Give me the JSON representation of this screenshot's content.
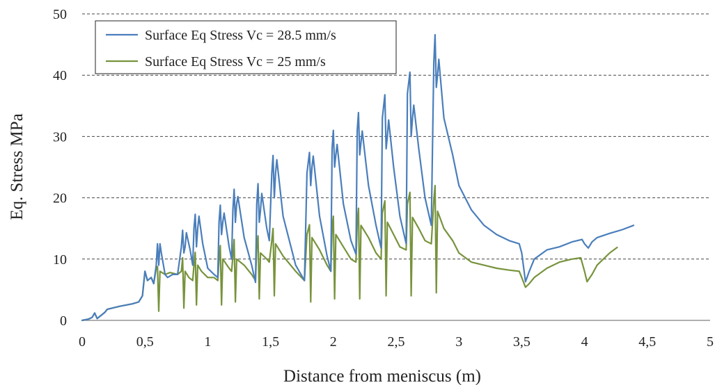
{
  "chart_data": {
    "type": "line",
    "xlabel": "Distance from meniscus (m)",
    "ylabel": "Eq. Stress MPa",
    "xlim": [
      0,
      5
    ],
    "ylim": [
      0,
      50
    ],
    "xticks": [
      0,
      0.5,
      1,
      1.5,
      2,
      2.5,
      3,
      3.5,
      4,
      4.5,
      5
    ],
    "xtick_labels": [
      "0",
      "0,5",
      "1",
      "1,5",
      "2",
      "2,5",
      "3",
      "3,5",
      "4",
      "4,5",
      "5"
    ],
    "yticks": [
      0,
      10,
      20,
      30,
      40,
      50
    ],
    "ytick_labels": [
      "0",
      "10",
      "20",
      "30",
      "40",
      "50"
    ],
    "grid": "horizontal dashed",
    "legend_position": "top-left",
    "series": [
      {
        "name": "Surface Eq Stress Vc = 28.5 mm/s",
        "color": "#4a7ebb",
        "points": [
          [
            0,
            0
          ],
          [
            0.05,
            0.2
          ],
          [
            0.08,
            0.5
          ],
          [
            0.1,
            1.2
          ],
          [
            0.12,
            0.3
          ],
          [
            0.18,
            1.3
          ],
          [
            0.2,
            1.8
          ],
          [
            0.3,
            2.3
          ],
          [
            0.4,
            2.7
          ],
          [
            0.45,
            3.0
          ],
          [
            0.48,
            4.0
          ],
          [
            0.5,
            8.0
          ],
          [
            0.52,
            6.5
          ],
          [
            0.55,
            7.0
          ],
          [
            0.57,
            6.0
          ],
          [
            0.59,
            9.0
          ],
          [
            0.6,
            12.5
          ],
          [
            0.61,
            9.0
          ],
          [
            0.62,
            12.5
          ],
          [
            0.63,
            11.0
          ],
          [
            0.66,
            7.5
          ],
          [
            0.68,
            7.0
          ],
          [
            0.72,
            7.5
          ],
          [
            0.76,
            7.5
          ],
          [
            0.79,
            12.0
          ],
          [
            0.8,
            14.7
          ],
          [
            0.81,
            11.0
          ],
          [
            0.82,
            12.0
          ],
          [
            0.83,
            14.3
          ],
          [
            0.86,
            11.5
          ],
          [
            0.88,
            9.0
          ],
          [
            0.89,
            15.0
          ],
          [
            0.9,
            17.3
          ],
          [
            0.91,
            12.0
          ],
          [
            0.92,
            15.0
          ],
          [
            0.93,
            17.0
          ],
          [
            0.96,
            12.5
          ],
          [
            1.0,
            8.5
          ],
          [
            1.05,
            7.5
          ],
          [
            1.08,
            7.0
          ],
          [
            1.09,
            16.0
          ],
          [
            1.1,
            18.8
          ],
          [
            1.11,
            14.0
          ],
          [
            1.12,
            16.0
          ],
          [
            1.13,
            17.5
          ],
          [
            1.17,
            12.0
          ],
          [
            1.19,
            10.0
          ],
          [
            1.2,
            18.0
          ],
          [
            1.21,
            21.4
          ],
          [
            1.22,
            16.0
          ],
          [
            1.23,
            19.0
          ],
          [
            1.24,
            20.2
          ],
          [
            1.29,
            13.5
          ],
          [
            1.35,
            9.0
          ],
          [
            1.38,
            6.2
          ],
          [
            1.39,
            19.0
          ],
          [
            1.4,
            22.3
          ],
          [
            1.41,
            16.0
          ],
          [
            1.42,
            18.0
          ],
          [
            1.43,
            20.7
          ],
          [
            1.47,
            15.0
          ],
          [
            1.49,
            13.0
          ],
          [
            1.51,
            24.0
          ],
          [
            1.52,
            26.9
          ],
          [
            1.53,
            20.0
          ],
          [
            1.54,
            24.0
          ],
          [
            1.55,
            26.2
          ],
          [
            1.6,
            17.0
          ],
          [
            1.7,
            9.0
          ],
          [
            1.77,
            6.5
          ],
          [
            1.79,
            24.0
          ],
          [
            1.81,
            27.4
          ],
          [
            1.82,
            22.0
          ],
          [
            1.83,
            25.0
          ],
          [
            1.84,
            26.8
          ],
          [
            1.89,
            17.0
          ],
          [
            1.95,
            10.5
          ],
          [
            1.98,
            8.0
          ],
          [
            1.99,
            28.0
          ],
          [
            2.0,
            31.0
          ],
          [
            2.01,
            25.0
          ],
          [
            2.02,
            27.0
          ],
          [
            2.03,
            28.7
          ],
          [
            2.08,
            19.0
          ],
          [
            2.14,
            13.0
          ],
          [
            2.18,
            10.8
          ],
          [
            2.19,
            31.0
          ],
          [
            2.2,
            33.9
          ],
          [
            2.21,
            27.0
          ],
          [
            2.22,
            29.0
          ],
          [
            2.23,
            30.9
          ],
          [
            2.28,
            22.0
          ],
          [
            2.34,
            15.5
          ],
          [
            2.38,
            11.8
          ],
          [
            2.39,
            33.0
          ],
          [
            2.41,
            36.8
          ],
          [
            2.42,
            28.0
          ],
          [
            2.43,
            30.0
          ],
          [
            2.44,
            32.7
          ],
          [
            2.48,
            25.0
          ],
          [
            2.53,
            17.0
          ],
          [
            2.58,
            12.5
          ],
          [
            2.59,
            37.0
          ],
          [
            2.61,
            40.5
          ],
          [
            2.62,
            30.0
          ],
          [
            2.63,
            33.0
          ],
          [
            2.64,
            35.1
          ],
          [
            2.68,
            28.0
          ],
          [
            2.73,
            20.0
          ],
          [
            2.78,
            15.5
          ],
          [
            2.8,
            42.0
          ],
          [
            2.81,
            46.6
          ],
          [
            2.82,
            38.0
          ],
          [
            2.83,
            40.0
          ],
          [
            2.84,
            42.6
          ],
          [
            2.88,
            33.0
          ],
          [
            2.95,
            27.0
          ],
          [
            3.0,
            22.0
          ],
          [
            3.1,
            18.0
          ],
          [
            3.2,
            15.5
          ],
          [
            3.3,
            14.0
          ],
          [
            3.4,
            13.0
          ],
          [
            3.48,
            12.5
          ],
          [
            3.5,
            11.0
          ],
          [
            3.53,
            6.3
          ],
          [
            3.56,
            8.0
          ],
          [
            3.6,
            10.0
          ],
          [
            3.7,
            11.5
          ],
          [
            3.8,
            12.0
          ],
          [
            3.9,
            12.8
          ],
          [
            3.98,
            13.2
          ],
          [
            4.0,
            12.5
          ],
          [
            4.03,
            11.8
          ],
          [
            4.06,
            12.8
          ],
          [
            4.1,
            13.5
          ],
          [
            4.2,
            14.2
          ],
          [
            4.3,
            14.8
          ],
          [
            4.39,
            15.5
          ]
        ]
      },
      {
        "name": "Surface Eq Stress Vc = 25 mm/s",
        "color": "#77933c",
        "points": [
          [
            0,
            0
          ],
          [
            0.05,
            0.2
          ],
          [
            0.08,
            0.5
          ],
          [
            0.1,
            1.2
          ],
          [
            0.12,
            0.3
          ],
          [
            0.18,
            1.3
          ],
          [
            0.2,
            1.8
          ],
          [
            0.3,
            2.3
          ],
          [
            0.4,
            2.7
          ],
          [
            0.45,
            3.0
          ],
          [
            0.48,
            4.0
          ],
          [
            0.5,
            8.0
          ],
          [
            0.52,
            6.5
          ],
          [
            0.55,
            7.0
          ],
          [
            0.57,
            6.0
          ],
          [
            0.59,
            8.5
          ],
          [
            0.6,
            8.8
          ],
          [
            0.61,
            1.5
          ],
          [
            0.62,
            8.0
          ],
          [
            0.66,
            7.5
          ],
          [
            0.7,
            7.8
          ],
          [
            0.76,
            7.5
          ],
          [
            0.79,
            8.0
          ],
          [
            0.8,
            10.2
          ],
          [
            0.81,
            2.0
          ],
          [
            0.82,
            8.0
          ],
          [
            0.85,
            7.0
          ],
          [
            0.88,
            6.5
          ],
          [
            0.89,
            9.0
          ],
          [
            0.9,
            11.1
          ],
          [
            0.91,
            2.5
          ],
          [
            0.92,
            9.0
          ],
          [
            0.95,
            8.0
          ],
          [
            1.0,
            7.0
          ],
          [
            1.05,
            7.0
          ],
          [
            1.08,
            6.5
          ],
          [
            1.09,
            10.0
          ],
          [
            1.1,
            12.2
          ],
          [
            1.11,
            2.5
          ],
          [
            1.12,
            10.0
          ],
          [
            1.17,
            8.5
          ],
          [
            1.19,
            8.0
          ],
          [
            1.2,
            10.5
          ],
          [
            1.21,
            13.2
          ],
          [
            1.22,
            3.0
          ],
          [
            1.23,
            10.0
          ],
          [
            1.29,
            9.0
          ],
          [
            1.35,
            7.5
          ],
          [
            1.38,
            6.5
          ],
          [
            1.39,
            12.0
          ],
          [
            1.4,
            13.8
          ],
          [
            1.41,
            3.5
          ],
          [
            1.42,
            11.0
          ],
          [
            1.47,
            10.0
          ],
          [
            1.49,
            9.5
          ],
          [
            1.51,
            13.0
          ],
          [
            1.52,
            15.0
          ],
          [
            1.53,
            4.0
          ],
          [
            1.54,
            12.5
          ],
          [
            1.6,
            10.5
          ],
          [
            1.7,
            8.0
          ],
          [
            1.77,
            6.5
          ],
          [
            1.79,
            14.0
          ],
          [
            1.81,
            15.6
          ],
          [
            1.82,
            3.0
          ],
          [
            1.83,
            13.5
          ],
          [
            1.89,
            11.5
          ],
          [
            1.95,
            9.0
          ],
          [
            1.98,
            8.0
          ],
          [
            1.99,
            15.0
          ],
          [
            2.0,
            17.0
          ],
          [
            2.01,
            3.5
          ],
          [
            2.02,
            14.0
          ],
          [
            2.08,
            12.0
          ],
          [
            2.14,
            10.0
          ],
          [
            2.18,
            9.5
          ],
          [
            2.19,
            16.0
          ],
          [
            2.2,
            18.3
          ],
          [
            2.21,
            3.5
          ],
          [
            2.22,
            15.5
          ],
          [
            2.28,
            13.5
          ],
          [
            2.34,
            11.0
          ],
          [
            2.38,
            10.0
          ],
          [
            2.39,
            17.5
          ],
          [
            2.41,
            19.5
          ],
          [
            2.42,
            4.0
          ],
          [
            2.43,
            16.0
          ],
          [
            2.48,
            14.0
          ],
          [
            2.53,
            12.0
          ],
          [
            2.58,
            11.5
          ],
          [
            2.59,
            19.0
          ],
          [
            2.61,
            20.9
          ],
          [
            2.62,
            4.0
          ],
          [
            2.63,
            16.8
          ],
          [
            2.68,
            15.0
          ],
          [
            2.73,
            13.0
          ],
          [
            2.78,
            12.5
          ],
          [
            2.8,
            19.5
          ],
          [
            2.81,
            22.0
          ],
          [
            2.82,
            4.5
          ],
          [
            2.83,
            17.8
          ],
          [
            2.88,
            15.0
          ],
          [
            2.95,
            13.0
          ],
          [
            3.0,
            11.0
          ],
          [
            3.1,
            9.5
          ],
          [
            3.2,
            9.0
          ],
          [
            3.3,
            8.5
          ],
          [
            3.4,
            8.2
          ],
          [
            3.48,
            8.0
          ],
          [
            3.5,
            7.0
          ],
          [
            3.53,
            5.4
          ],
          [
            3.56,
            6.0
          ],
          [
            3.6,
            7.0
          ],
          [
            3.7,
            8.5
          ],
          [
            3.8,
            9.5
          ],
          [
            3.9,
            10.0
          ],
          [
            3.97,
            10.2
          ],
          [
            4.0,
            8.0
          ],
          [
            4.02,
            6.3
          ],
          [
            4.06,
            7.5
          ],
          [
            4.1,
            9.0
          ],
          [
            4.2,
            11.0
          ],
          [
            4.26,
            11.9
          ]
        ]
      }
    ]
  }
}
